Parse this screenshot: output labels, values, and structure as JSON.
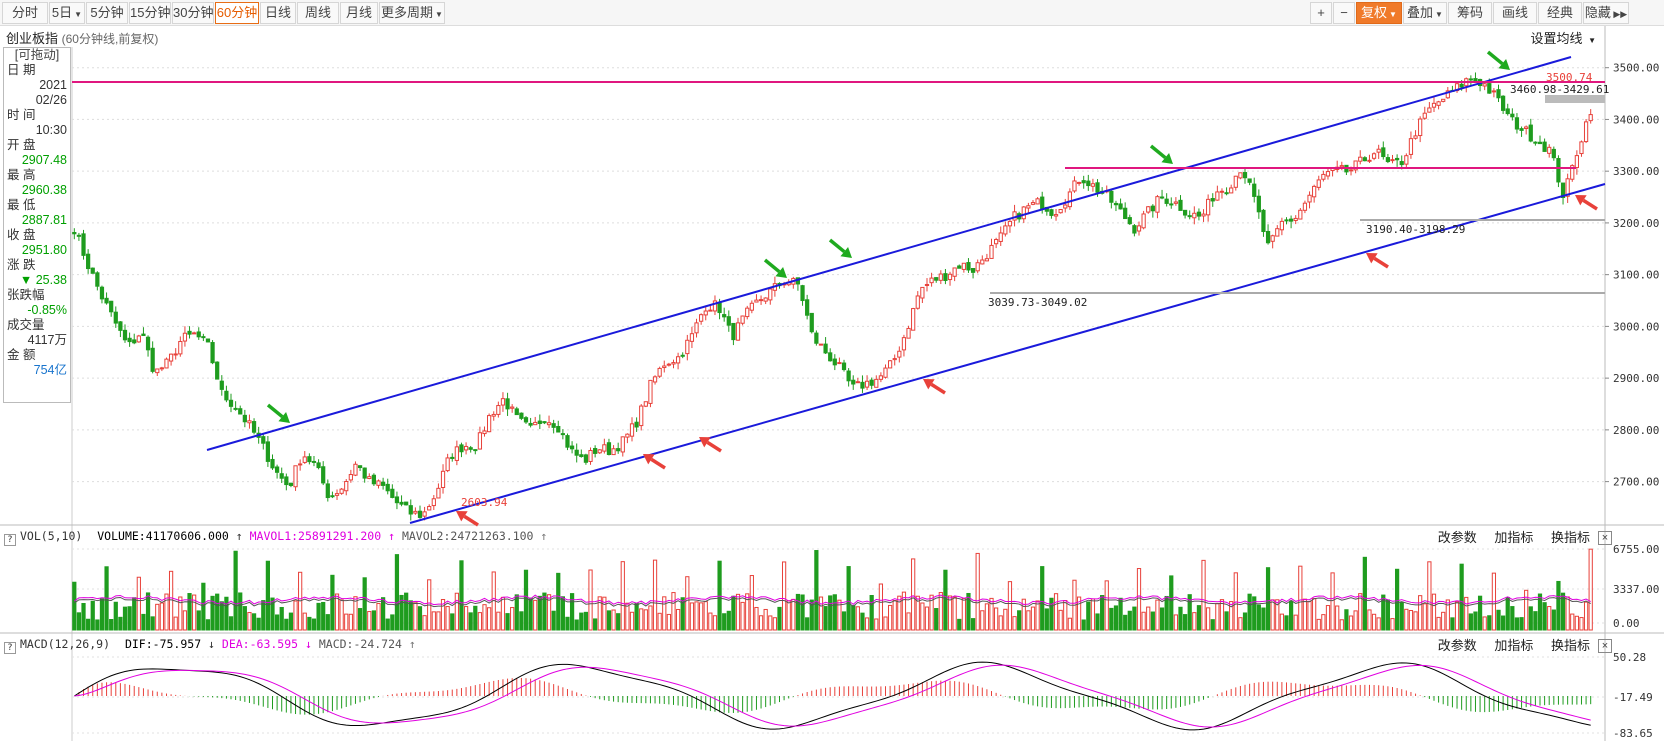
{
  "toolbar": {
    "periods": [
      {
        "label": "分时"
      },
      {
        "label": "5日",
        "dropdown": true
      },
      {
        "label": "5分钟"
      },
      {
        "label": "15分钟"
      },
      {
        "label": "30分钟"
      },
      {
        "label": "60分钟",
        "active": true
      },
      {
        "label": "日线"
      },
      {
        "label": "周线"
      },
      {
        "label": "月线"
      },
      {
        "label": "更多周期",
        "dropdown": true
      }
    ],
    "right_tools": [
      {
        "label": "+",
        "icon": "zoom-in-icon"
      },
      {
        "label": "−",
        "icon": "zoom-out-icon"
      },
      {
        "label": "复权",
        "dropdown": true,
        "highlight": true
      },
      {
        "label": "叠加",
        "dropdown": true
      },
      {
        "label": "筹码"
      },
      {
        "label": "画线"
      },
      {
        "label": "经典"
      },
      {
        "label": "隐藏",
        "icon": "double-chevron-right-icon"
      }
    ]
  },
  "chart_header": {
    "title": "创业板指",
    "subtitle": "(60分钟线,前复权)",
    "set_ma_label": "设置均线"
  },
  "info_panel": {
    "drag_label": "[可拖动]",
    "date_label": "日  期",
    "date_year": "2021",
    "date_md": "02/26",
    "time_label": "时  间",
    "time_value": "10:30",
    "open_label": "开  盘",
    "open_value": "2907.48",
    "high_label": "最  高",
    "high_value": "2960.38",
    "low_label": "最  低",
    "low_value": "2887.81",
    "close_label": "收  盘",
    "close_value": "2951.80",
    "change_label": "涨  跌",
    "change_value": "▼ 25.38",
    "pct_label": "张跌幅",
    "pct_value": "-0.85%",
    "volume_label": "成交量",
    "volume_value": "4117万",
    "amount_label": "金  额",
    "amount_value": "754亿"
  },
  "vol_indicator": {
    "name": "VOL(5,10)",
    "volume": "VOLUME:41170606.000",
    "mavol1": "MAVOL1:25891291.200",
    "mavol2": "MAVOL2:24721263.100",
    "links": [
      "改参数",
      "加指标",
      "换指标"
    ]
  },
  "macd_indicator": {
    "name": "MACD(12,26,9)",
    "dif": "DIF:-75.957",
    "dea": "DEA:-63.595",
    "macd": "MACD:-24.724",
    "links": [
      "改参数",
      "加指标",
      "换指标"
    ]
  },
  "colors": {
    "up": "#e8413a",
    "down": "#1f9c1f",
    "channel": "#1a1adb",
    "hline": "#e0177f",
    "annot_red": "#e8413a",
    "annot_green": "#1faa1f"
  },
  "chart_data": [
    {
      "type": "candlestick",
      "title": "创业板指",
      "y_ticks": [
        "3500.00",
        "3400.00",
        "3300.00",
        "3200.00",
        "3100.00",
        "3000.00",
        "2900.00",
        "2800.00",
        "2700.00"
      ],
      "ylim": [
        2620,
        3540
      ],
      "anchor_closes": [
        3190,
        3120,
        3060,
        3010,
        2960,
        2990,
        2910,
        2930,
        2975,
        2985,
        2960,
        2870,
        2845,
        2810,
        2770,
        2720,
        2690,
        2755,
        2730,
        2670,
        2690,
        2735,
        2700,
        2690,
        2660,
        2640,
        2635,
        2680,
        2750,
        2770,
        2770,
        2830,
        2860,
        2820,
        2800,
        2825,
        2810,
        2760,
        2740,
        2765,
        2760,
        2780,
        2820,
        2890,
        2930,
        2940,
        2980,
        3040,
        3040,
        2980,
        3020,
        3050,
        3070,
        3090,
        3080,
        2980,
        2950,
        2920,
        2880,
        2890,
        2900,
        2930,
        2990,
        3070,
        3090,
        3100,
        3120,
        3110,
        3140,
        3170,
        3210,
        3230,
        3240,
        3220,
        3250,
        3290,
        3270,
        3250,
        3220,
        3190,
        3220,
        3250,
        3240,
        3220,
        3210,
        3260,
        3270,
        3310,
        3240,
        3150,
        3200,
        3210,
        3250,
        3290,
        3300,
        3300,
        3320,
        3340,
        3310,
        3320,
        3380,
        3420,
        3440,
        3460,
        3480,
        3470,
        3440,
        3400,
        3380,
        3360,
        3340,
        3250,
        3340,
        3420
      ],
      "annotations": {
        "low_label": "2603.94",
        "high_label": "3500.74",
        "gap_1": "3039.73-3049.02",
        "gap_2": "3190.40-3198.29",
        "gap_3": "3460.98-3429.61"
      }
    },
    {
      "type": "bar",
      "title": "VOL(5,10)",
      "y_ticks": [
        "6755.00",
        "3337.00",
        "0.00"
      ]
    },
    {
      "type": "bar",
      "title": "MACD(12,26,9)",
      "y_ticks": [
        "50.28",
        "-17.49",
        "-83.65"
      ]
    }
  ]
}
